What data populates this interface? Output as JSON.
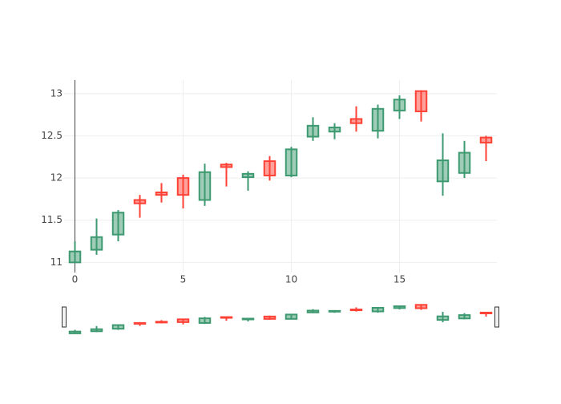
{
  "chart_data": {
    "type": "candlestick",
    "x": [
      0,
      1,
      2,
      3,
      4,
      5,
      6,
      7,
      8,
      9,
      10,
      11,
      12,
      13,
      14,
      15,
      16,
      17,
      18,
      19
    ],
    "open": [
      11.0,
      11.15,
      11.33,
      11.74,
      11.83,
      12.0,
      11.74,
      12.16,
      12.01,
      12.2,
      12.03,
      12.49,
      12.55,
      12.7,
      12.56,
      12.8,
      13.03,
      11.96,
      12.06,
      12.48
    ],
    "high": [
      11.25,
      11.52,
      11.62,
      11.8,
      11.94,
      12.04,
      12.17,
      12.18,
      12.08,
      12.26,
      12.37,
      12.72,
      12.65,
      12.85,
      12.87,
      12.98,
      13.04,
      12.53,
      12.44,
      12.5
    ],
    "low": [
      11.0,
      11.09,
      11.25,
      11.53,
      11.71,
      11.64,
      11.67,
      11.9,
      11.85,
      11.97,
      12.01,
      12.44,
      12.46,
      12.55,
      12.47,
      12.7,
      12.67,
      11.79,
      12.0,
      12.2
    ],
    "close": [
      11.13,
      11.3,
      11.59,
      11.7,
      11.8,
      11.8,
      12.07,
      12.13,
      12.05,
      12.03,
      12.34,
      12.62,
      12.6,
      12.65,
      12.82,
      12.93,
      12.79,
      12.21,
      12.3,
      12.42
    ],
    "increasing_color": "#3d9970",
    "decreasing_color": "#ff4136",
    "xlim": [
      -0.5,
      19.5
    ],
    "xticks": [
      0,
      5,
      10,
      15
    ],
    "ylim": [
      10.88,
      13.16
    ],
    "yticks": [
      11,
      11.5,
      12,
      12.5,
      13
    ],
    "grid": true,
    "rangeslider": true
  }
}
